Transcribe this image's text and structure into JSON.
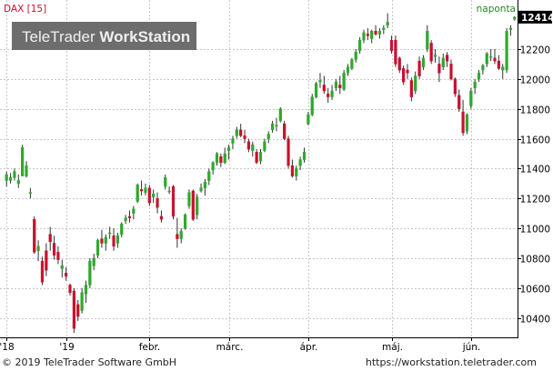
{
  "chart_data": {
    "type": "candlestick",
    "instrument_label": "DAX [15]",
    "interval_label": "naponta",
    "watermark": {
      "text_light": "TeleTrader",
      "text_bold": "WorkStation"
    },
    "last_value_label": "12414",
    "y_ticks": [
      10400,
      10600,
      10800,
      11000,
      11200,
      11400,
      11600,
      11800,
      12000,
      12200
    ],
    "ylim": [
      10270,
      12480
    ],
    "x_tick_labels": [
      {
        "label": "'18",
        "index": 0
      },
      {
        "label": "'19",
        "index": 15
      },
      {
        "label": "febr.",
        "index": 36
      },
      {
        "label": "márc.",
        "index": 56
      },
      {
        "label": "ápr.",
        "index": 76
      },
      {
        "label": "máj.",
        "index": 97
      },
      {
        "label": "jún.",
        "index": 117
      }
    ],
    "ohlc": [
      [
        11320,
        11380,
        11280,
        11360
      ],
      [
        11320,
        11370,
        11300,
        11340
      ],
      [
        11340,
        11400,
        11320,
        11380
      ],
      [
        11300,
        11360,
        11270,
        11320
      ],
      [
        11350,
        11560,
        11350,
        11540
      ],
      [
        11350,
        11450,
        11340,
        11420
      ],
      [
        11240,
        11270,
        11200,
        11240
      ],
      [
        11060,
        11080,
        10830,
        10840
      ],
      [
        10850,
        10920,
        10780,
        10880
      ],
      [
        10780,
        10810,
        10620,
        10640
      ],
      [
        10850,
        10900,
        10680,
        10720
      ],
      [
        10960,
        11010,
        10850,
        10910
      ],
      [
        10900,
        10950,
        10790,
        10820
      ],
      [
        10840,
        10880,
        10760,
        10790
      ],
      [
        10730,
        10790,
        10670,
        10750
      ],
      [
        10700,
        10740,
        10650,
        10680
      ],
      [
        10620,
        10630,
        10550,
        10570
      ],
      [
        10580,
        10600,
        10300,
        10330
      ],
      [
        10490,
        10520,
        10380,
        10410
      ],
      [
        10450,
        10600,
        10430,
        10570
      ],
      [
        10560,
        10650,
        10500,
        10620
      ],
      [
        10620,
        10800,
        10600,
        10780
      ],
      [
        10750,
        10830,
        10720,
        10800
      ],
      [
        10820,
        10930,
        10800,
        10920
      ],
      [
        10930,
        10990,
        10870,
        10900
      ],
      [
        10900,
        10960,
        10850,
        10940
      ],
      [
        10970,
        11010,
        10930,
        10970
      ],
      [
        10950,
        11000,
        10850,
        10880
      ],
      [
        10900,
        10970,
        10870,
        10950
      ],
      [
        10960,
        11040,
        10940,
        11030
      ],
      [
        11050,
        11090,
        11030,
        11070
      ],
      [
        11080,
        11120,
        11040,
        11070
      ],
      [
        11100,
        11150,
        11060,
        11130
      ],
      [
        11180,
        11300,
        11170,
        11290
      ],
      [
        11260,
        11320,
        11220,
        11250
      ],
      [
        11240,
        11300,
        11220,
        11270
      ],
      [
        11270,
        11290,
        11150,
        11170
      ],
      [
        11210,
        11260,
        11170,
        11230
      ],
      [
        11200,
        11240,
        11100,
        11140
      ],
      [
        11080,
        11120,
        11040,
        11060
      ],
      [
        11280,
        11360,
        11260,
        11340
      ],
      [
        11250,
        11280,
        11230,
        11250
      ],
      [
        11280,
        11290,
        11060,
        11080
      ],
      [
        10960,
        11070,
        10870,
        10930
      ],
      [
        10930,
        11000,
        10900,
        10980
      ],
      [
        11000,
        11100,
        10990,
        11090
      ],
      [
        11150,
        11260,
        11130,
        11240
      ],
      [
        11250,
        11260,
        11050,
        11060
      ],
      [
        11090,
        11230,
        11060,
        11210
      ],
      [
        11250,
        11300,
        11240,
        11270
      ],
      [
        11270,
        11330,
        11220,
        11310
      ],
      [
        11320,
        11400,
        11290,
        11380
      ],
      [
        11390,
        11450,
        11360,
        11440
      ],
      [
        11440,
        11510,
        11420,
        11500
      ],
      [
        11480,
        11500,
        11410,
        11440
      ],
      [
        11440,
        11540,
        11430,
        11500
      ],
      [
        11520,
        11560,
        11460,
        11540
      ],
      [
        11570,
        11620,
        11530,
        11600
      ],
      [
        11620,
        11680,
        11600,
        11660
      ],
      [
        11660,
        11700,
        11610,
        11620
      ],
      [
        11620,
        11660,
        11570,
        11600
      ],
      [
        11580,
        11600,
        11510,
        11530
      ],
      [
        11520,
        11580,
        11480,
        11560
      ],
      [
        11510,
        11530,
        11430,
        11440
      ],
      [
        11450,
        11530,
        11430,
        11510
      ],
      [
        11520,
        11600,
        11510,
        11580
      ],
      [
        11600,
        11650,
        11570,
        11630
      ],
      [
        11660,
        11720,
        11640,
        11700
      ],
      [
        11690,
        11740,
        11650,
        11690
      ],
      [
        11720,
        11810,
        11710,
        11800
      ],
      [
        11700,
        11720,
        11590,
        11600
      ],
      [
        11600,
        11620,
        11400,
        11420
      ],
      [
        11420,
        11460,
        11340,
        11350
      ],
      [
        11350,
        11420,
        11320,
        11400
      ],
      [
        11420,
        11480,
        11390,
        11460
      ],
      [
        11460,
        11540,
        11440,
        11510
      ],
      [
        11700,
        11780,
        11690,
        11760
      ],
      [
        11760,
        11900,
        11750,
        11880
      ],
      [
        11880,
        11980,
        11870,
        11970
      ],
      [
        11980,
        12040,
        11940,
        11990
      ],
      [
        11960,
        12020,
        11900,
        11920
      ],
      [
        11900,
        11940,
        11840,
        11880
      ],
      [
        11880,
        11960,
        11860,
        11920
      ],
      [
        11940,
        12000,
        11920,
        11980
      ],
      [
        11960,
        12020,
        11900,
        11940
      ],
      [
        11930,
        12060,
        11920,
        12040
      ],
      [
        12040,
        12100,
        12020,
        12080
      ],
      [
        12070,
        12140,
        12060,
        12130
      ],
      [
        12130,
        12200,
        12110,
        12180
      ],
      [
        12190,
        12280,
        12170,
        12260
      ],
      [
        12260,
        12330,
        12240,
        12310
      ],
      [
        12300,
        12340,
        12260,
        12290
      ],
      [
        12270,
        12330,
        12240,
        12320
      ],
      [
        12320,
        12360,
        12290,
        12300
      ],
      [
        12300,
        12340,
        12270,
        12320
      ],
      [
        12330,
        12360,
        12300,
        12340
      ],
      [
        12360,
        12440,
        12340,
        12380
      ],
      [
        12260,
        12290,
        12170,
        12190
      ],
      [
        12260,
        12290,
        12080,
        12100
      ],
      [
        12140,
        12150,
        12040,
        12060
      ],
      [
        12070,
        12090,
        11960,
        11980
      ],
      [
        12060,
        12100,
        12000,
        12040
      ],
      [
        11990,
        12010,
        11850,
        11880
      ],
      [
        11920,
        12050,
        11900,
        12020
      ],
      [
        12120,
        12150,
        12000,
        12020
      ],
      [
        12080,
        12160,
        12060,
        12140
      ],
      [
        12200,
        12360,
        12180,
        12320
      ],
      [
        12240,
        12260,
        12100,
        12120
      ],
      [
        12150,
        12200,
        12110,
        12160
      ],
      [
        12100,
        12150,
        11980,
        12040
      ],
      [
        12080,
        12170,
        12060,
        12140
      ],
      [
        12160,
        12180,
        12080,
        12120
      ],
      [
        12100,
        12130,
        11990,
        12000
      ],
      [
        12000,
        12010,
        11880,
        11900
      ],
      [
        11890,
        11930,
        11780,
        11800
      ],
      [
        11780,
        11860,
        11620,
        11640
      ],
      [
        11650,
        11770,
        11630,
        11760
      ],
      [
        11820,
        11940,
        11800,
        11920
      ],
      [
        11940,
        12000,
        11900,
        11980
      ],
      [
        12000,
        12060,
        11980,
        12040
      ],
      [
        12060,
        12100,
        12030,
        12090
      ],
      [
        12100,
        12180,
        12080,
        12170
      ],
      [
        12150,
        12200,
        12120,
        12150
      ],
      [
        12140,
        12200,
        12100,
        12120
      ],
      [
        12120,
        12160,
        12060,
        12070
      ],
      [
        12060,
        12100,
        12000,
        12080
      ],
      [
        12060,
        12340,
        12040,
        12320
      ],
      [
        12330,
        12360,
        12290,
        12340
      ],
      [
        12400,
        12420,
        12390,
        12414
      ]
    ]
  },
  "footer": {
    "copyright": "© 2019 TeleTrader Software GmbH",
    "url": "https://workstation.teletrader.com"
  },
  "colors": {
    "up": "#2ea82e",
    "down": "#c8102e",
    "grid": "#c8c8c8",
    "watermark_bg": "#6d6d6d",
    "instrument_label": "#c8102e",
    "interval_label": "#1f8a1f"
  }
}
